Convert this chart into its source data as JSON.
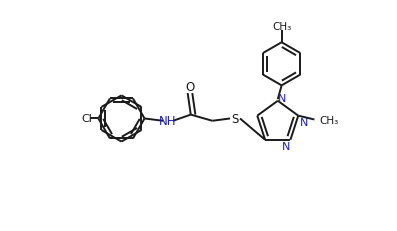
{
  "bg_color": "#ffffff",
  "line_color": "#1a1a1a",
  "heteroatom_color": "#1a1a1a",
  "label_N_color": "#1c1ccc",
  "lw": 1.4,
  "dbo": 0.012,
  "figsize": [
    3.97,
    2.32
  ],
  "dpi": 100,
  "xlim": [
    0,
    3.97
  ],
  "ylim": [
    0,
    2.32
  ]
}
